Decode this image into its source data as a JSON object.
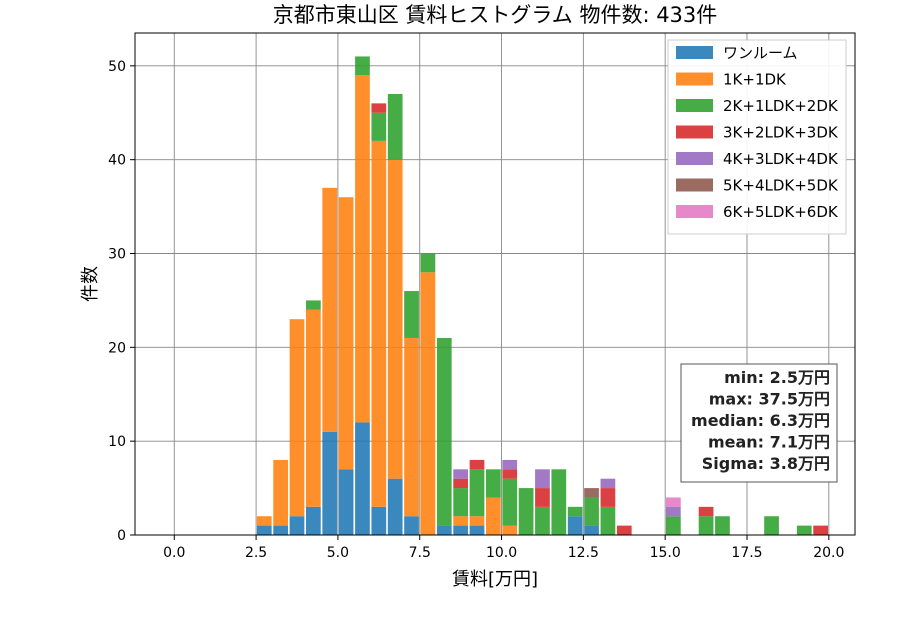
{
  "chart_data": {
    "type": "bar",
    "stacked": true,
    "title": "京都市東山区 賃料ヒストグラム  物件数: 433件",
    "xlabel": "賃料[万円]",
    "ylabel": "件数",
    "xlim": [
      -1.2,
      20.8
    ],
    "ylim": [
      0,
      53.5
    ],
    "grid": true,
    "bin_width": 0.5,
    "bins": [
      2.5,
      3.0,
      3.5,
      4.0,
      4.5,
      5.0,
      5.5,
      6.0,
      6.5,
      7.0,
      7.5,
      8.0,
      8.5,
      9.0,
      9.5,
      10.0,
      10.5,
      11.0,
      11.5,
      12.0,
      12.5,
      13.0,
      13.5,
      15.0,
      16.0,
      16.5,
      18.0,
      19.0,
      19.5
    ],
    "x_ticks": [
      0.0,
      2.5,
      5.0,
      7.5,
      10.0,
      12.5,
      15.0,
      17.5,
      20.0
    ],
    "x_tick_labels": [
      "0.0",
      "2.5",
      "5.0",
      "7.5",
      "10.0",
      "12.5",
      "15.0",
      "17.5",
      "20.0"
    ],
    "y_ticks": [
      0,
      10,
      20,
      30,
      40,
      50
    ],
    "y_tick_labels": [
      "0",
      "10",
      "20",
      "30",
      "40",
      "50"
    ],
    "legend_position": "top-right",
    "series": [
      {
        "name": "ワンルーム",
        "color": "#1f77b4",
        "values": [
          1,
          1,
          2,
          3,
          11,
          7,
          12,
          3,
          6,
          2,
          0,
          1,
          1,
          1,
          0,
          0,
          0,
          0,
          0,
          2,
          1,
          0,
          0,
          0,
          0,
          0,
          0,
          0,
          0
        ]
      },
      {
        "name": "1K+1DK",
        "color": "#ff7f0e",
        "values": [
          1,
          7,
          21,
          21,
          26,
          29,
          37,
          39,
          34,
          19,
          28,
          0,
          1,
          1,
          4,
          1,
          0,
          0,
          0,
          0,
          0,
          0,
          0,
          0,
          0,
          0,
          0,
          0,
          0
        ]
      },
      {
        "name": "2K+1LDK+2DK",
        "color": "#2ca02c",
        "values": [
          0,
          0,
          0,
          1,
          0,
          0,
          2,
          3,
          7,
          5,
          2,
          20,
          3,
          5,
          3,
          5,
          5,
          3,
          7,
          1,
          3,
          3,
          0,
          2,
          2,
          2,
          2,
          1,
          0
        ]
      },
      {
        "name": "3K+2LDK+3DK",
        "color": "#d62728",
        "values": [
          0,
          0,
          0,
          0,
          0,
          0,
          0,
          1,
          0,
          0,
          0,
          0,
          1,
          1,
          0,
          1,
          0,
          2,
          0,
          0,
          0,
          2,
          1,
          0,
          1,
          0,
          0,
          0,
          1
        ]
      },
      {
        "name": "4K+3LDK+4DK",
        "color": "#9467bd",
        "values": [
          0,
          0,
          0,
          0,
          0,
          0,
          0,
          0,
          0,
          0,
          0,
          0,
          1,
          0,
          0,
          1,
          0,
          2,
          0,
          0,
          0,
          1,
          0,
          1,
          0,
          0,
          0,
          0,
          0
        ]
      },
      {
        "name": "5K+4LDK+5DK",
        "color": "#8c564b",
        "values": [
          0,
          0,
          0,
          0,
          0,
          0,
          0,
          0,
          0,
          0,
          0,
          0,
          0,
          0,
          0,
          0,
          0,
          0,
          0,
          0,
          1,
          0,
          0,
          0,
          0,
          0,
          0,
          0,
          0
        ]
      },
      {
        "name": "6K+5LDK+6DK",
        "color": "#e377c2",
        "values": [
          0,
          0,
          0,
          0,
          0,
          0,
          0,
          0,
          0,
          0,
          0,
          0,
          0,
          0,
          0,
          0,
          0,
          0,
          0,
          0,
          0,
          0,
          0,
          1,
          0,
          0,
          0,
          0,
          0
        ]
      }
    ],
    "stats": {
      "lines": [
        "min: 2.5万円",
        "max: 37.5万円",
        "median: 6.3万円",
        "mean: 7.1万円",
        "Sigma: 3.8万円"
      ]
    }
  }
}
